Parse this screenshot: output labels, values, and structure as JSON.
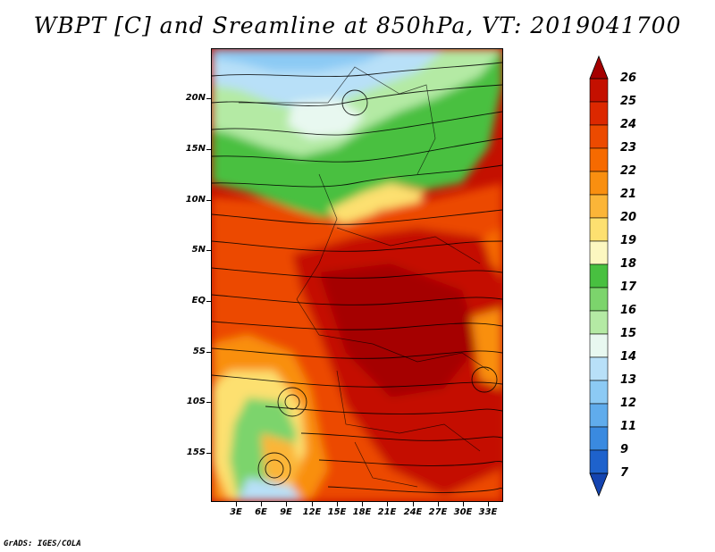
{
  "title": "WBPT [C] and Sreamline at 850hPa, VT: 2019041700",
  "credit": "GrADS: IGES/COLA",
  "map": {
    "lat_labels": [
      "20N",
      "15N",
      "10N",
      "5N",
      "EQ",
      "5S",
      "10S",
      "15S"
    ],
    "lon_labels": [
      "3E",
      "6E",
      "9E",
      "12E",
      "15E",
      "18E",
      "21E",
      "24E",
      "27E",
      "30E",
      "33E"
    ]
  },
  "colorbar": {
    "labels": [
      "26",
      "25",
      "24",
      "23",
      "22",
      "21",
      "20",
      "19",
      "18",
      "17",
      "16",
      "15",
      "14",
      "13",
      "12",
      "11",
      "9",
      "7"
    ],
    "colors": [
      "#a50000",
      "#c41000",
      "#dc2800",
      "#ec4a00",
      "#f66a00",
      "#f98f10",
      "#fbb538",
      "#fde070",
      "#fcf7c0",
      "#48c040",
      "#7cd46c",
      "#b4eaa4",
      "#e8f8f0",
      "#b8e0f8",
      "#8ccaf4",
      "#60acec",
      "#3a8ae0",
      "#1e62cc",
      "#1444b0"
    ]
  }
}
